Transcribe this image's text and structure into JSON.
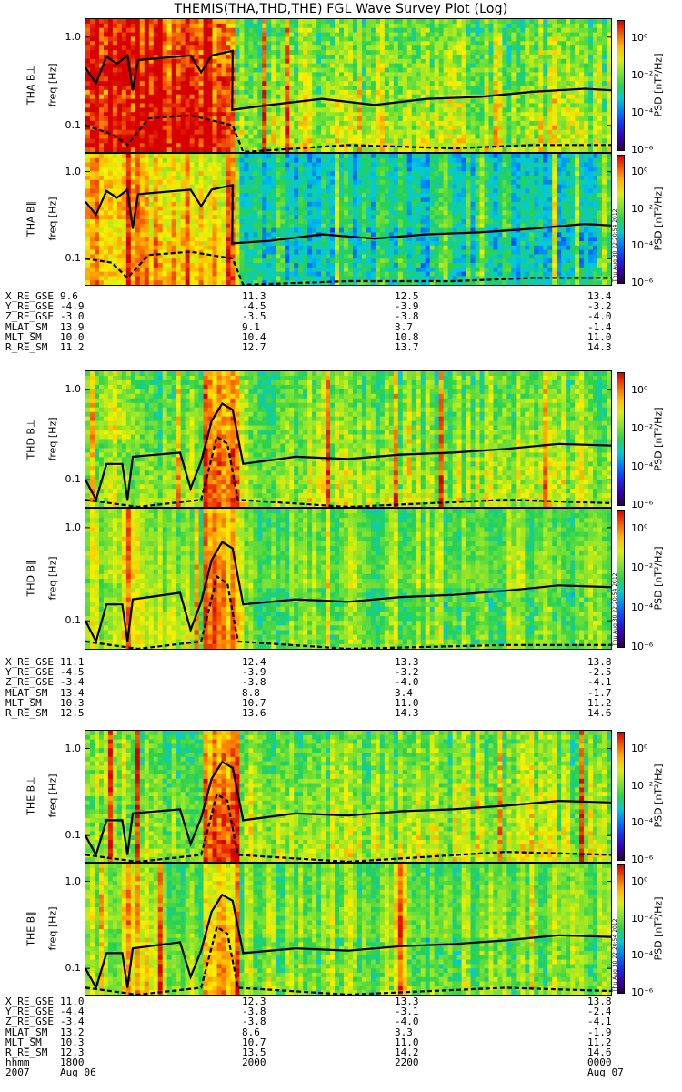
{
  "title": "THEMIS(THA,THD,THE) FGL Wave Survey Plot (Log)",
  "chart_data": {
    "type": "heatmap",
    "title": "THEMIS(THA,THD,THE) FGL Wave Survey Plot (Log)",
    "xlabel": "hhmm",
    "x_ticks": [
      "1800",
      "2000",
      "2200",
      "0000"
    ],
    "x_dates": {
      "start_year": "2007",
      "start_date": "Aug 06",
      "end_date": "Aug 07"
    },
    "ylabel": "freq [Hz]",
    "yscale": "log",
    "ylim": [
      0.05,
      1.6
    ],
    "y_ticks": [
      "1.0",
      "0.1"
    ],
    "colorbar": {
      "label": "PSD [nT²/Hz]",
      "scale": "log",
      "range": [
        1e-06,
        10
      ],
      "ticks": [
        "10⁰",
        "10⁻²",
        "10⁻⁴",
        "10⁻⁶"
      ]
    },
    "stamp": "Thu Aug 30 22:20:54 2012",
    "panels": [
      {
        "ylabel": "THA B⊥",
        "group": 0,
        "seed": 11,
        "burst": [
          0.0,
          0.28
        ],
        "strength": 1.0,
        "solid": [
          [
            0,
            0.45
          ],
          [
            0.02,
            0.3
          ],
          [
            0.04,
            0.6
          ],
          [
            0.06,
            0.5
          ],
          [
            0.08,
            0.62
          ],
          [
            0.09,
            0.25
          ],
          [
            0.1,
            0.55
          ],
          [
            0.2,
            0.62
          ],
          [
            0.22,
            0.4
          ],
          [
            0.24,
            0.62
          ],
          [
            0.28,
            0.7
          ],
          [
            0.279,
            0.15
          ],
          [
            0.35,
            0.17
          ],
          [
            0.45,
            0.2
          ],
          [
            0.55,
            0.17
          ],
          [
            0.65,
            0.2
          ],
          [
            0.75,
            0.21
          ],
          [
            0.85,
            0.24
          ],
          [
            0.95,
            0.26
          ],
          [
            1.0,
            0.25
          ]
        ],
        "dashed": [
          [
            0,
            0.1
          ],
          [
            0.05,
            0.08
          ],
          [
            0.08,
            0.06
          ],
          [
            0.12,
            0.12
          ],
          [
            0.2,
            0.13
          ],
          [
            0.28,
            0.1
          ],
          [
            0.3,
            0.05
          ],
          [
            0.5,
            0.06
          ],
          [
            0.7,
            0.055
          ],
          [
            0.85,
            0.06
          ],
          [
            1.0,
            0.06
          ]
        ]
      },
      {
        "ylabel": "THA B∥",
        "group": 0,
        "seed": 23,
        "burst": [
          0.0,
          0.28
        ],
        "strength": 0.7,
        "solid": [
          [
            0,
            0.45
          ],
          [
            0.02,
            0.32
          ],
          [
            0.04,
            0.6
          ],
          [
            0.06,
            0.5
          ],
          [
            0.08,
            0.62
          ],
          [
            0.09,
            0.22
          ],
          [
            0.1,
            0.55
          ],
          [
            0.2,
            0.62
          ],
          [
            0.22,
            0.4
          ],
          [
            0.24,
            0.62
          ],
          [
            0.28,
            0.7
          ],
          [
            0.279,
            0.15
          ],
          [
            0.35,
            0.16
          ],
          [
            0.45,
            0.19
          ],
          [
            0.55,
            0.17
          ],
          [
            0.65,
            0.19
          ],
          [
            0.75,
            0.2
          ],
          [
            0.85,
            0.22
          ],
          [
            0.95,
            0.25
          ],
          [
            1.0,
            0.24
          ]
        ],
        "dashed": [
          [
            0,
            0.1
          ],
          [
            0.05,
            0.09
          ],
          [
            0.08,
            0.06
          ],
          [
            0.12,
            0.11
          ],
          [
            0.2,
            0.12
          ],
          [
            0.28,
            0.1
          ],
          [
            0.3,
            0.05
          ],
          [
            0.5,
            0.055
          ],
          [
            0.7,
            0.055
          ],
          [
            0.85,
            0.06
          ],
          [
            1.0,
            0.06
          ]
        ]
      },
      {
        "ylabel": "THD B⊥",
        "group": 1,
        "seed": 37,
        "burst": [
          0.22,
          0.29
        ],
        "strength": 0.85,
        "solid": [
          [
            0,
            0.1
          ],
          [
            0.02,
            0.06
          ],
          [
            0.04,
            0.15
          ],
          [
            0.07,
            0.15
          ],
          [
            0.08,
            0.06
          ],
          [
            0.09,
            0.18
          ],
          [
            0.18,
            0.2
          ],
          [
            0.2,
            0.08
          ],
          [
            0.22,
            0.16
          ],
          [
            0.24,
            0.45
          ],
          [
            0.26,
            0.7
          ],
          [
            0.28,
            0.6
          ],
          [
            0.3,
            0.15
          ],
          [
            0.4,
            0.18
          ],
          [
            0.5,
            0.17
          ],
          [
            0.6,
            0.19
          ],
          [
            0.7,
            0.2
          ],
          [
            0.8,
            0.22
          ],
          [
            0.9,
            0.25
          ],
          [
            1.0,
            0.24
          ]
        ],
        "dashed": [
          [
            0,
            0.06
          ],
          [
            0.1,
            0.05
          ],
          [
            0.22,
            0.06
          ],
          [
            0.25,
            0.3
          ],
          [
            0.27,
            0.25
          ],
          [
            0.29,
            0.06
          ],
          [
            0.5,
            0.05
          ],
          [
            0.8,
            0.06
          ],
          [
            1.0,
            0.055
          ]
        ]
      },
      {
        "ylabel": "THD B∥",
        "group": 1,
        "seed": 41,
        "burst": [
          0.22,
          0.29
        ],
        "strength": 0.6,
        "solid": [
          [
            0,
            0.1
          ],
          [
            0.02,
            0.06
          ],
          [
            0.04,
            0.15
          ],
          [
            0.07,
            0.15
          ],
          [
            0.08,
            0.06
          ],
          [
            0.09,
            0.17
          ],
          [
            0.18,
            0.2
          ],
          [
            0.2,
            0.08
          ],
          [
            0.22,
            0.16
          ],
          [
            0.24,
            0.45
          ],
          [
            0.26,
            0.7
          ],
          [
            0.28,
            0.6
          ],
          [
            0.3,
            0.15
          ],
          [
            0.4,
            0.17
          ],
          [
            0.5,
            0.16
          ],
          [
            0.6,
            0.18
          ],
          [
            0.7,
            0.19
          ],
          [
            0.8,
            0.21
          ],
          [
            0.9,
            0.24
          ],
          [
            1.0,
            0.23
          ]
        ],
        "dashed": [
          [
            0,
            0.06
          ],
          [
            0.1,
            0.05
          ],
          [
            0.22,
            0.06
          ],
          [
            0.25,
            0.3
          ],
          [
            0.27,
            0.25
          ],
          [
            0.29,
            0.06
          ],
          [
            0.5,
            0.05
          ],
          [
            0.8,
            0.055
          ],
          [
            1.0,
            0.055
          ]
        ]
      },
      {
        "ylabel": "THE B⊥",
        "group": 2,
        "seed": 53,
        "burst": [
          0.22,
          0.29
        ],
        "strength": 0.85,
        "solid": [
          [
            0,
            0.1
          ],
          [
            0.02,
            0.06
          ],
          [
            0.04,
            0.15
          ],
          [
            0.07,
            0.15
          ],
          [
            0.08,
            0.06
          ],
          [
            0.09,
            0.18
          ],
          [
            0.18,
            0.2
          ],
          [
            0.2,
            0.08
          ],
          [
            0.22,
            0.16
          ],
          [
            0.24,
            0.45
          ],
          [
            0.26,
            0.7
          ],
          [
            0.28,
            0.6
          ],
          [
            0.3,
            0.15
          ],
          [
            0.4,
            0.18
          ],
          [
            0.5,
            0.17
          ],
          [
            0.6,
            0.19
          ],
          [
            0.7,
            0.2
          ],
          [
            0.8,
            0.22
          ],
          [
            0.9,
            0.25
          ],
          [
            1.0,
            0.24
          ]
        ],
        "dashed": [
          [
            0,
            0.06
          ],
          [
            0.1,
            0.05
          ],
          [
            0.22,
            0.06
          ],
          [
            0.25,
            0.3
          ],
          [
            0.27,
            0.25
          ],
          [
            0.29,
            0.06
          ],
          [
            0.5,
            0.05
          ],
          [
            0.8,
            0.065
          ],
          [
            1.0,
            0.06
          ]
        ]
      },
      {
        "ylabel": "THE B∥",
        "group": 2,
        "seed": 67,
        "burst": [
          0.22,
          0.29
        ],
        "strength": 0.6,
        "solid": [
          [
            0,
            0.1
          ],
          [
            0.02,
            0.06
          ],
          [
            0.04,
            0.15
          ],
          [
            0.07,
            0.15
          ],
          [
            0.08,
            0.06
          ],
          [
            0.09,
            0.17
          ],
          [
            0.18,
            0.2
          ],
          [
            0.2,
            0.08
          ],
          [
            0.22,
            0.16
          ],
          [
            0.24,
            0.45
          ],
          [
            0.26,
            0.7
          ],
          [
            0.28,
            0.6
          ],
          [
            0.3,
            0.15
          ],
          [
            0.4,
            0.17
          ],
          [
            0.5,
            0.16
          ],
          [
            0.6,
            0.18
          ],
          [
            0.7,
            0.19
          ],
          [
            0.8,
            0.21
          ],
          [
            0.9,
            0.24
          ],
          [
            1.0,
            0.23
          ]
        ],
        "dashed": [
          [
            0,
            0.06
          ],
          [
            0.1,
            0.05
          ],
          [
            0.22,
            0.06
          ],
          [
            0.25,
            0.3
          ],
          [
            0.27,
            0.25
          ],
          [
            0.29,
            0.06
          ],
          [
            0.5,
            0.05
          ],
          [
            0.8,
            0.06
          ],
          [
            1.0,
            0.055
          ]
        ]
      }
    ]
  },
  "ephemeris": [
    {
      "rows": [
        {
          "name": "X_RE_GSE",
          "values": [
            "9.6",
            "11.3",
            "12.5",
            "13.4"
          ]
        },
        {
          "name": "Y_RE_GSE",
          "values": [
            "-4.9",
            "-4.5",
            "-3.9",
            "-3.2"
          ]
        },
        {
          "name": "Z_RE_GSE",
          "values": [
            "-3.0",
            "-3.5",
            "-3.8",
            "-4.0"
          ]
        },
        {
          "name": "MLAT_SM",
          "values": [
            "13.9",
            "9.1",
            "3.7",
            "-1.4"
          ]
        },
        {
          "name": "MLT_SM",
          "values": [
            "10.0",
            "10.4",
            "10.8",
            "11.0"
          ]
        },
        {
          "name": "R_RE_SM",
          "values": [
            "11.2",
            "12.7",
            "13.7",
            "14.3"
          ]
        }
      ]
    },
    {
      "rows": [
        {
          "name": "X_RE_GSE",
          "values": [
            "11.1",
            "12.4",
            "13.3",
            "13.8"
          ]
        },
        {
          "name": "Y_RE_GSE",
          "values": [
            "-4.5",
            "-3.9",
            "-3.2",
            "-2.5"
          ]
        },
        {
          "name": "Z_RE_GSE",
          "values": [
            "-3.4",
            "-3.8",
            "-4.0",
            "-4.1"
          ]
        },
        {
          "name": "MLAT_SM",
          "values": [
            "13.4",
            "8.8",
            "3.4",
            "-1.7"
          ]
        },
        {
          "name": "MLT_SM",
          "values": [
            "10.3",
            "10.7",
            "11.0",
            "11.2"
          ]
        },
        {
          "name": "R_RE_SM",
          "values": [
            "12.5",
            "13.6",
            "14.3",
            "14.6"
          ]
        }
      ]
    },
    {
      "rows": [
        {
          "name": "X_RE_GSE",
          "values": [
            "11.0",
            "12.3",
            "13.3",
            "13.8"
          ]
        },
        {
          "name": "Y_RE_GSE",
          "values": [
            "-4.4",
            "-3.8",
            "-3.1",
            "-2.4"
          ]
        },
        {
          "name": "Z_RE_GSE",
          "values": [
            "-3.4",
            "-3.8",
            "-4.0",
            "-4.1"
          ]
        },
        {
          "name": "MLAT_SM",
          "values": [
            "13.2",
            "8.6",
            "3.3",
            "-1.9"
          ]
        },
        {
          "name": "MLT_SM",
          "values": [
            "10.3",
            "10.7",
            "11.0",
            "11.2"
          ]
        },
        {
          "name": "R_RE_SM",
          "values": [
            "12.3",
            "13.5",
            "14.2",
            "14.6"
          ]
        },
        {
          "name": "hhmm",
          "values": [
            "1800",
            "2000",
            "2200",
            "0000"
          ]
        },
        {
          "name": "2007",
          "values": [
            "Aug 06",
            "",
            "",
            "Aug 07"
          ]
        }
      ]
    }
  ]
}
